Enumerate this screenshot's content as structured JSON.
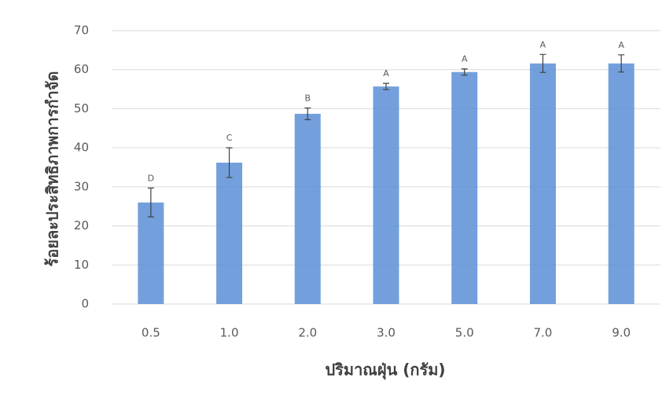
{
  "chart_data": {
    "type": "bar",
    "y_label": "ร้อยละประสิทธิภาพการกำจัด",
    "x_label": "ปริมาณฝุ่น (กรัม)",
    "categories": [
      "0.5",
      "1.0",
      "2.0",
      "3.0",
      "5.0",
      "7.0",
      "9.0"
    ],
    "values": [
      26,
      36.2,
      48.7,
      55.7,
      59.4,
      61.6,
      61.6
    ],
    "errors": [
      3.7,
      3.8,
      1.5,
      0.8,
      0.8,
      2.3,
      2.2
    ],
    "annotations": [
      "D",
      "C",
      "B",
      "A",
      "A",
      "A",
      "A"
    ],
    "color": "#5b8fd6",
    "ylim": [
      0,
      70
    ],
    "yticks": [
      0,
      10,
      20,
      30,
      40,
      50,
      60,
      70
    ],
    "grid": true
  }
}
